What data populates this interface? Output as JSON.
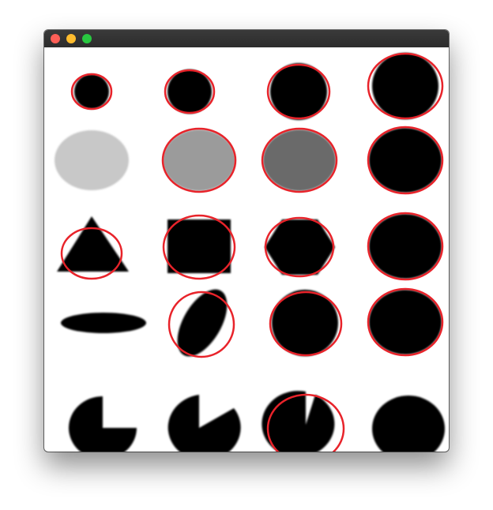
{
  "window": {
    "title": "",
    "buttons": [
      "close",
      "minimize",
      "zoom"
    ]
  },
  "colors": {
    "titlebar": "#2e2e2e",
    "shape_fill": "#000000",
    "detection_outline": "#e8232a",
    "light_gray": "#c8c8c8",
    "mid_gray": "#9b9b9b",
    "dark_gray": "#6b6b6b"
  },
  "grid": {
    "rows": 5,
    "columns": 4,
    "cells": [
      {
        "row": 1,
        "col": 1,
        "shape": "circle",
        "fill": "black",
        "detected": true
      },
      {
        "row": 1,
        "col": 2,
        "shape": "circle",
        "fill": "black",
        "detected": true
      },
      {
        "row": 1,
        "col": 3,
        "shape": "circle",
        "fill": "black",
        "detected": true
      },
      {
        "row": 1,
        "col": 4,
        "shape": "circle",
        "fill": "black",
        "detected": true
      },
      {
        "row": 2,
        "col": 1,
        "shape": "circle",
        "fill": "light-gray",
        "detected": false
      },
      {
        "row": 2,
        "col": 2,
        "shape": "circle",
        "fill": "mid-gray",
        "detected": true
      },
      {
        "row": 2,
        "col": 3,
        "shape": "circle",
        "fill": "dark-gray",
        "detected": true
      },
      {
        "row": 2,
        "col": 4,
        "shape": "circle",
        "fill": "black",
        "detected": true
      },
      {
        "row": 3,
        "col": 1,
        "shape": "triangle",
        "fill": "black",
        "detected": true
      },
      {
        "row": 3,
        "col": 2,
        "shape": "square",
        "fill": "black",
        "detected": true
      },
      {
        "row": 3,
        "col": 3,
        "shape": "hexagon",
        "fill": "black",
        "detected": true
      },
      {
        "row": 3,
        "col": 4,
        "shape": "circle",
        "fill": "black",
        "detected": true
      },
      {
        "row": 4,
        "col": 1,
        "shape": "ellipse-flat",
        "fill": "black",
        "detected": false
      },
      {
        "row": 4,
        "col": 2,
        "shape": "ellipse-tilted",
        "fill": "black",
        "detected": true
      },
      {
        "row": 4,
        "col": 3,
        "shape": "circle",
        "fill": "black",
        "detected": true
      },
      {
        "row": 4,
        "col": 4,
        "shape": "circle",
        "fill": "black",
        "detected": true
      },
      {
        "row": 5,
        "col": 1,
        "shape": "pacman-quarter",
        "fill": "black",
        "detected": false
      },
      {
        "row": 5,
        "col": 2,
        "shape": "pacman-wedge",
        "fill": "black",
        "detected": false
      },
      {
        "row": 5,
        "col": 3,
        "shape": "pacman-sliver",
        "fill": "black",
        "detected": true
      },
      {
        "row": 5,
        "col": 4,
        "shape": "circle",
        "fill": "black",
        "detected": false
      }
    ]
  }
}
